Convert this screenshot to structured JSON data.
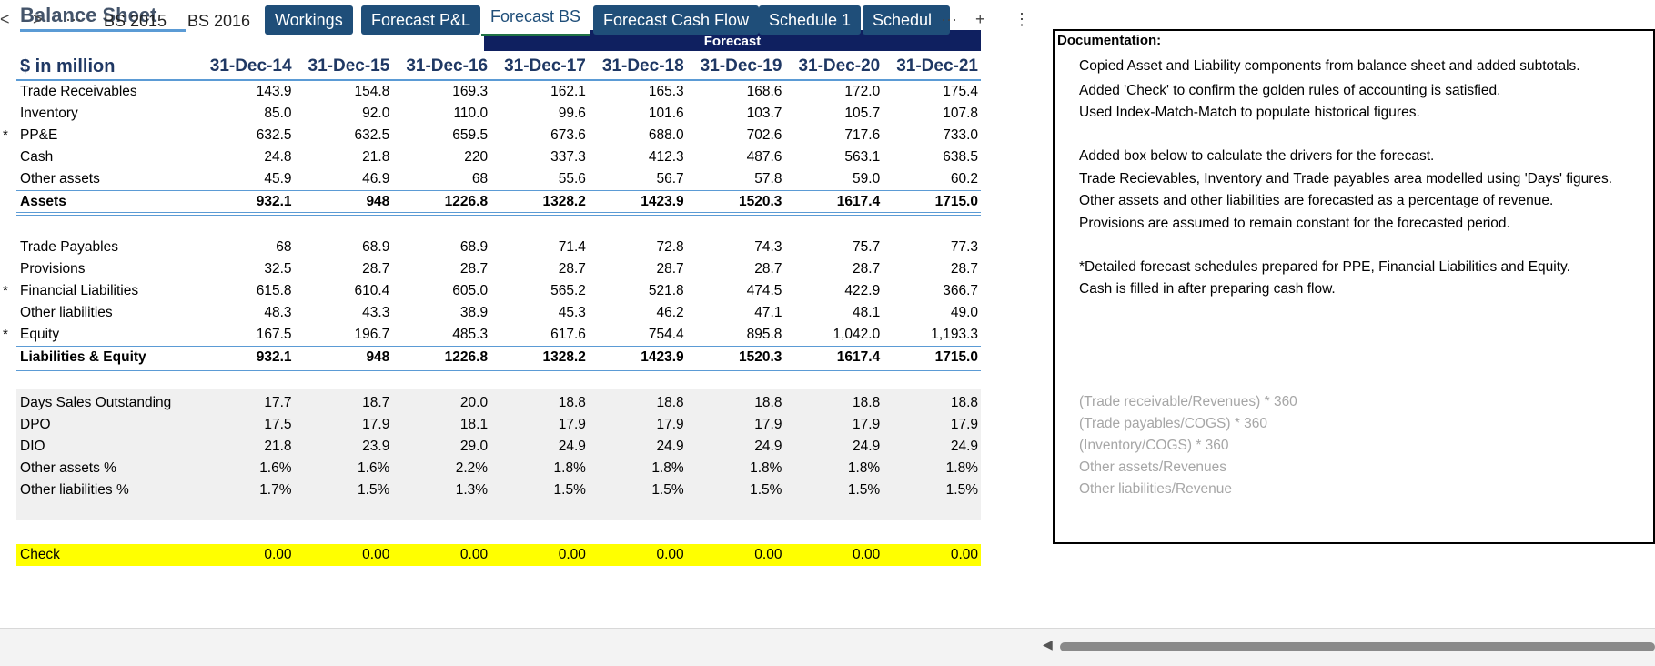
{
  "sheet": {
    "title": "Balance Sheet",
    "forecast_label": "Forecast",
    "unit_label": "$ in million",
    "periods": [
      "31-Dec-14",
      "31-Dec-15",
      "31-Dec-16",
      "31-Dec-17",
      "31-Dec-18",
      "31-Dec-19",
      "31-Dec-20",
      "31-Dec-21"
    ]
  },
  "assets": [
    {
      "star": "",
      "label": "Trade Receivables",
      "values": [
        "143.9",
        "154.8",
        "169.3",
        "162.1",
        "165.3",
        "168.6",
        "172.0",
        "175.4"
      ]
    },
    {
      "star": "",
      "label": "Inventory",
      "values": [
        "85.0",
        "92.0",
        "110.0",
        "99.6",
        "101.6",
        "103.7",
        "105.7",
        "107.8"
      ]
    },
    {
      "star": "*",
      "label": "PP&E",
      "values": [
        "632.5",
        "632.5",
        "659.5",
        "673.6",
        "688.0",
        "702.6",
        "717.6",
        "733.0"
      ]
    },
    {
      "star": "",
      "label": "Cash",
      "values": [
        "24.8",
        "21.8",
        "220",
        "337.3",
        "412.3",
        "487.6",
        "563.1",
        "638.5"
      ]
    },
    {
      "star": "",
      "label": "Other assets",
      "values": [
        "45.9",
        "46.9",
        "68",
        "55.6",
        "56.7",
        "57.8",
        "59.0",
        "60.2"
      ]
    }
  ],
  "assets_total": {
    "label": "Assets",
    "values": [
      "932.1",
      "948",
      "1226.8",
      "1328.2",
      "1423.9",
      "1520.3",
      "1617.4",
      "1715.0"
    ]
  },
  "liabilities": [
    {
      "star": "",
      "label": "Trade Payables",
      "values": [
        "68",
        "68.9",
        "68.9",
        "71.4",
        "72.8",
        "74.3",
        "75.7",
        "77.3"
      ]
    },
    {
      "star": "",
      "label": "Provisions",
      "values": [
        "32.5",
        "28.7",
        "28.7",
        "28.7",
        "28.7",
        "28.7",
        "28.7",
        "28.7"
      ]
    },
    {
      "star": "*",
      "label": "Financial Liabilities",
      "values": [
        "615.8",
        "610.4",
        "605.0",
        "565.2",
        "521.8",
        "474.5",
        "422.9",
        "366.7"
      ]
    },
    {
      "star": "",
      "label": "Other liabilities",
      "values": [
        "48.3",
        "43.3",
        "38.9",
        "45.3",
        "46.2",
        "47.1",
        "48.1",
        "49.0"
      ]
    },
    {
      "star": "*",
      "label": "Equity",
      "values": [
        "167.5",
        "196.7",
        "485.3",
        "617.6",
        "754.4",
        "895.8",
        "1,042.0",
        "1,193.3"
      ]
    }
  ],
  "liabilities_total": {
    "label": "Liabilities & Equity",
    "values": [
      "932.1",
      "948",
      "1226.8",
      "1328.2",
      "1423.9",
      "1520.3",
      "1617.4",
      "1715.0"
    ]
  },
  "drivers": [
    {
      "label": "Days Sales Outstanding",
      "values": [
        "17.7",
        "18.7",
        "20.0",
        "18.8",
        "18.8",
        "18.8",
        "18.8",
        "18.8"
      ],
      "formula": "(Trade receivable/Revenues) * 360"
    },
    {
      "label": "DPO",
      "values": [
        "17.5",
        "17.9",
        "18.1",
        "17.9",
        "17.9",
        "17.9",
        "17.9",
        "17.9"
      ],
      "formula": "(Trade payables/COGS) * 360"
    },
    {
      "label": "DIO",
      "values": [
        "21.8",
        "23.9",
        "29.0",
        "24.9",
        "24.9",
        "24.9",
        "24.9",
        "24.9"
      ],
      "formula": "(Inventory/COGS) * 360"
    },
    {
      "label": "Other assets %",
      "values": [
        "1.6%",
        "1.6%",
        "2.2%",
        "1.8%",
        "1.8%",
        "1.8%",
        "1.8%",
        "1.8%"
      ],
      "formula": "Other assets/Revenues"
    },
    {
      "label": "Other liabilities %",
      "values": [
        "1.7%",
        "1.5%",
        "1.3%",
        "1.5%",
        "1.5%",
        "1.5%",
        "1.5%",
        "1.5%"
      ],
      "formula": "Other liabilities/Revenue"
    }
  ],
  "check": {
    "label": "Check",
    "values": [
      "0.00",
      "0.00",
      "0.00",
      "0.00",
      "0.00",
      "0.00",
      "0.00",
      "0.00"
    ]
  },
  "documentation": {
    "title": "Documentation:",
    "lines": [
      "Copied Asset and Liability components from balance sheet and added subtotals.",
      "Added 'Check' to confirm the golden rules of accounting is satisfied.",
      "Used Index-Match-Match to populate historical figures.",
      "Added box below to calculate the drivers for the forecast.",
      "Trade Recievables, Inventory and Trade payables area modelled using 'Days' figures.",
      "Other assets and other liabilities are forecasted as a percentage of revenue.",
      "Provisions are assumed to remain constant for the forecasted period.",
      "*Detailed forecast schedules prepared for PPE, Financial Liabilities and Equity.",
      "Cash is filled in after preparing cash flow."
    ]
  },
  "tabs": {
    "nav_prev": "<",
    "nav_next": ">",
    "more_left": "···",
    "items": [
      {
        "label": "BS 2015",
        "style": "plain"
      },
      {
        "label": "BS 2016",
        "style": "plain"
      },
      {
        "label": "Workings",
        "style": "color"
      },
      {
        "label": "Forecast P&L",
        "style": "color"
      },
      {
        "label": "Forecast BS",
        "style": "active"
      },
      {
        "label": "Forecast Cash Flow",
        "style": "color"
      },
      {
        "label": "Schedule 1",
        "style": "color"
      },
      {
        "label": "Schedul",
        "style": "color"
      }
    ],
    "more_right": "···",
    "add": "+",
    "options": "⋮",
    "accent_color": "#1f4e79"
  }
}
